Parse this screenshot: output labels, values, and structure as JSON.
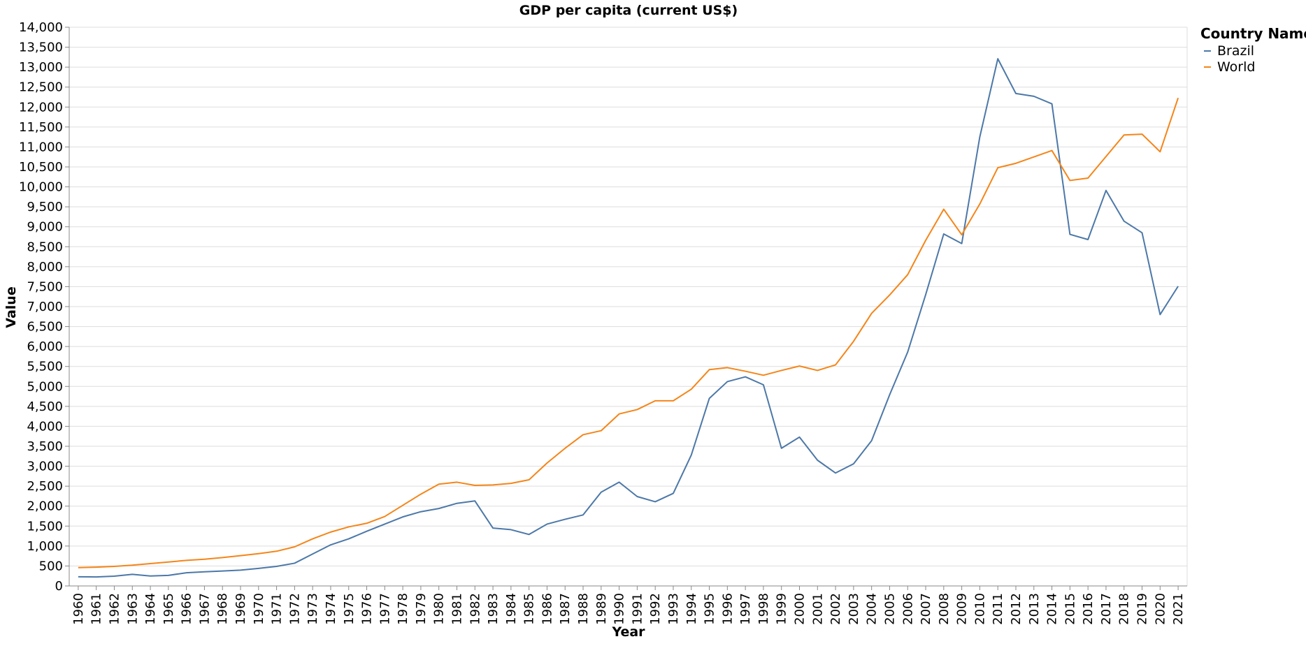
{
  "chart_data": {
    "type": "line",
    "title": "GDP per capita (current US$)",
    "xlabel": "Year",
    "ylabel": "Value",
    "ylim": [
      0,
      14000
    ],
    "ytick_step": 500,
    "grid": true,
    "legend_title": "Country Name",
    "legend_position": "top-right",
    "x": [
      1960,
      1961,
      1962,
      1963,
      1964,
      1965,
      1966,
      1967,
      1968,
      1969,
      1970,
      1971,
      1972,
      1973,
      1974,
      1975,
      1976,
      1977,
      1978,
      1979,
      1980,
      1981,
      1982,
      1983,
      1984,
      1985,
      1986,
      1987,
      1988,
      1989,
      1990,
      1991,
      1992,
      1993,
      1994,
      1995,
      1996,
      1997,
      1998,
      1999,
      2000,
      2001,
      2002,
      2003,
      2004,
      2005,
      2006,
      2007,
      2008,
      2009,
      2010,
      2011,
      2012,
      2013,
      2014,
      2015,
      2016,
      2017,
      2018,
      2019,
      2020,
      2021
    ],
    "series": [
      {
        "name": "Brazil",
        "color": "#4c78a8",
        "values": [
          230,
          225,
          245,
          290,
          250,
          265,
          330,
          355,
          375,
          395,
          440,
          490,
          570,
          800,
          1030,
          1180,
          1370,
          1550,
          1730,
          1860,
          1940,
          2070,
          2130,
          1450,
          1410,
          1290,
          1550,
          1670,
          1780,
          2350,
          2600,
          2240,
          2110,
          2320,
          3280,
          4700,
          5120,
          5240,
          5040,
          3450,
          3730,
          3150,
          2830,
          3060,
          3640,
          4790,
          5860,
          7300,
          8820,
          8580,
          11250,
          13210,
          12340,
          12270,
          12080,
          8810,
          8680,
          9910,
          9140,
          8850,
          6800,
          7510
        ]
      },
      {
        "name": "World",
        "color": "#f58518",
        "values": [
          460,
          470,
          490,
          520,
          560,
          600,
          640,
          670,
          710,
          760,
          810,
          870,
          980,
          1180,
          1350,
          1480,
          1570,
          1740,
          2020,
          2300,
          2550,
          2600,
          2520,
          2530,
          2570,
          2660,
          3080,
          3450,
          3790,
          3890,
          4310,
          4420,
          4640,
          4640,
          4930,
          5420,
          5470,
          5380,
          5280,
          5400,
          5510,
          5400,
          5540,
          6130,
          6830,
          7290,
          7800,
          8660,
          9440,
          8800,
          9570,
          10480,
          10590,
          10750,
          10910,
          10160,
          10220,
          10760,
          11300,
          11320,
          10880,
          12230
        ]
      }
    ]
  }
}
